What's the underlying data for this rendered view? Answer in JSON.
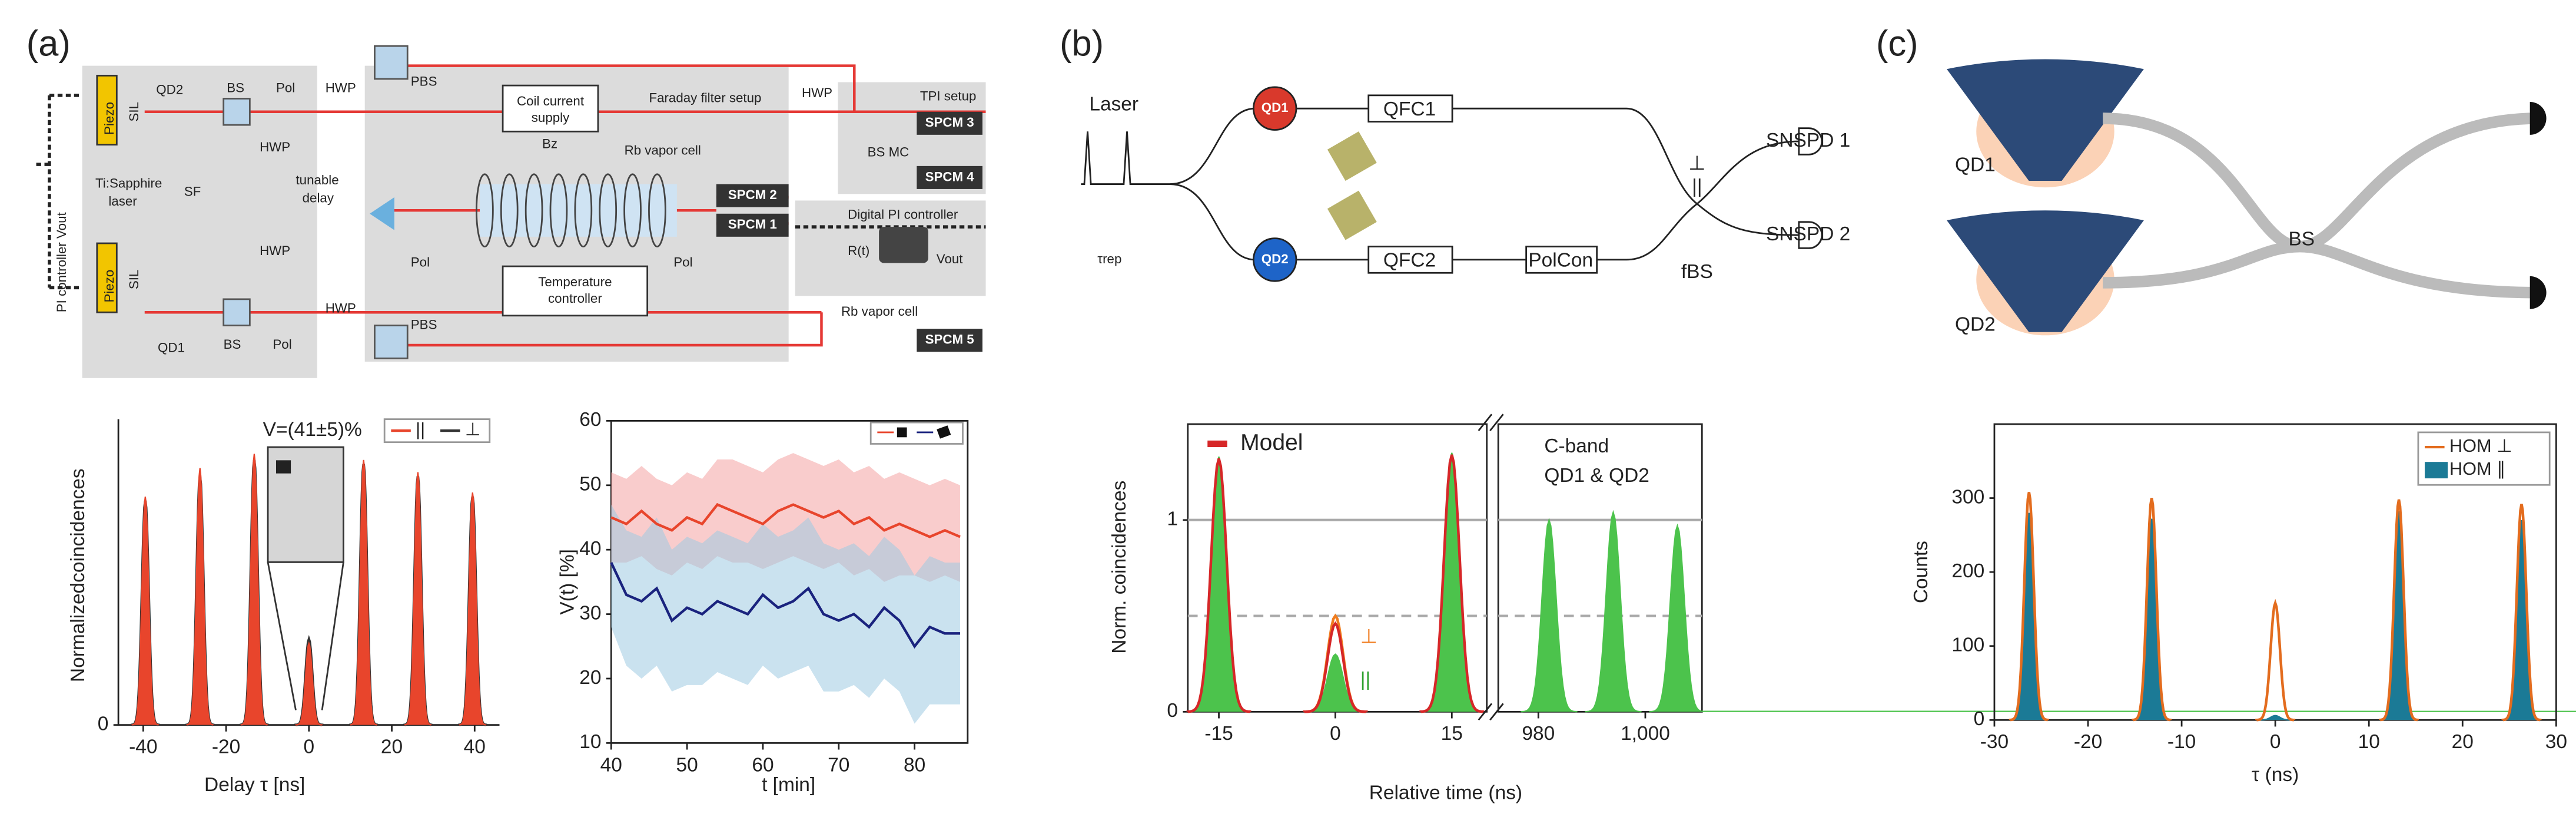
{
  "panels": [
    "(a)",
    "(b)",
    "(c)"
  ],
  "diagram_a": {
    "labels": [
      "QD2",
      "BS",
      "Pol",
      "HWP",
      "tunable",
      "delay",
      "Ti:Sapphire",
      "laser",
      "SF",
      "HWP",
      "BS",
      "Pol",
      "QD1",
      "HWP",
      "PBS",
      "PBS",
      "HWP",
      "Faraday filter setup",
      "Coil current",
      "supply",
      "Rb vapor cell",
      "Temperature",
      "controller",
      "Pol",
      "Pol",
      "SPCM 2",
      "SPCM 1",
      "TPI setup",
      "SPCM 3",
      "SPCM 4",
      "HWP",
      "BS MC",
      "Digital PI controller",
      "R(t)",
      "Vout",
      "Rb vapor cell",
      "SPCM 5",
      "PI controller Vout",
      "Piezo",
      "Piezo",
      "SIL",
      "SIL",
      "Bz"
    ]
  },
  "diagram_b": {
    "labels": [
      "Laser",
      "τrep",
      "QD1",
      "QD2",
      "QFC1",
      "QFC2",
      "PolCon",
      "⊥",
      "||",
      "fBS",
      "SNSPD 1",
      "SNSPD 2"
    ]
  },
  "diagram_c": {
    "labels": [
      "QD1",
      "QD2",
      "BS"
    ]
  },
  "chart_data": [
    {
      "type": "peaks",
      "xlim": [
        -46,
        46
      ],
      "xticks": [
        -40,
        -20,
        0,
        20,
        40
      ],
      "ylim": [
        0,
        1.5
      ],
      "yticks": [
        0
      ],
      "xlabel": "Delay τ [ns]",
      "ylabel": "Normalizedcoincidences",
      "annotation": "V=(41±5)%",
      "series": [
        {
          "name": "⊥",
          "color": "#333333",
          "fill": false,
          "x": [
            -39.5,
            -26.3,
            -13.2,
            0,
            13.2,
            26.3,
            39.5
          ],
          "values": [
            1.1,
            1.22,
            1.3,
            0.42,
            1.28,
            1.22,
            1.12
          ]
        },
        {
          "name": "||",
          "color": "#e8452c",
          "fill": true,
          "x": [
            -39.5,
            -26.3,
            -13.2,
            0,
            13.2,
            26.3,
            39.5
          ],
          "values": [
            1.12,
            1.26,
            1.33,
            0.4,
            1.3,
            1.24,
            1.14
          ]
        }
      ]
    },
    {
      "type": "line",
      "xlim": [
        40,
        87
      ],
      "xticks": [
        40,
        50,
        60,
        70,
        80
      ],
      "ylim": [
        10,
        60
      ],
      "yticks": [
        10,
        20,
        30,
        40,
        50,
        60
      ],
      "xlabel": "t [min]",
      "ylabel": "V(t) [%]",
      "x": [
        40,
        42,
        44,
        46,
        48,
        50,
        52,
        54,
        56,
        58,
        60,
        62,
        64,
        66,
        68,
        70,
        72,
        74,
        76,
        78,
        80,
        82,
        84,
        86
      ],
      "series": [
        {
          "color": "#e8452c",
          "band_color": "#f4a3a3",
          "values": [
            45,
            44,
            46,
            44,
            43,
            45,
            44,
            47,
            46,
            45,
            44,
            46,
            47,
            46,
            45,
            46,
            44,
            45,
            43,
            44,
            43,
            42,
            43,
            42
          ],
          "band_lower": [
            38,
            38,
            39,
            37,
            36,
            38,
            37,
            39,
            38,
            38,
            37,
            38,
            39,
            38,
            37,
            38,
            36,
            37,
            35,
            36,
            36,
            35,
            36,
            35
          ],
          "band_upper": [
            52,
            51,
            53,
            51,
            50,
            52,
            51,
            54,
            54,
            53,
            52,
            54,
            55,
            54,
            53,
            54,
            52,
            53,
            51,
            52,
            51,
            50,
            51,
            50
          ]
        },
        {
          "color": "#1a237e",
          "band_color": "#9ecae1",
          "values": [
            38,
            33,
            32,
            34,
            29,
            31,
            30,
            32,
            31,
            30,
            33,
            31,
            32,
            34,
            30,
            29,
            30,
            28,
            31,
            29,
            25,
            28,
            27,
            27
          ],
          "band_lower": [
            28,
            22,
            20,
            22,
            18,
            19,
            19,
            21,
            20,
            19,
            22,
            20,
            21,
            22,
            18,
            18,
            19,
            17,
            20,
            18,
            13,
            16,
            16,
            16
          ],
          "band_upper": [
            47,
            43,
            42,
            45,
            40,
            42,
            41,
            43,
            42,
            41,
            44,
            42,
            43,
            45,
            41,
            40,
            41,
            39,
            42,
            40,
            36,
            39,
            38,
            38
          ]
        }
      ]
    },
    {
      "type": "peaks",
      "ylim": [
        0,
        1.5
      ],
      "yticks": [
        0,
        1
      ],
      "grid": true,
      "dashed_lines": [
        0.5
      ],
      "segments": [
        {
          "xlim": [
            -19,
            19.5
          ],
          "xticks": [
            -15,
            0,
            15
          ]
        },
        {
          "xlim": [
            972.5,
            1010.6
          ],
          "xticks": [
            980,
            {
              "value": 1000,
              "label": "1,000"
            }
          ]
        }
      ],
      "xlabel": "Relative time (ns)",
      "ylabel": "Norm. coincidences",
      "annotations": [
        "C-band",
        "QD1 & QD2",
        "⊥",
        "||"
      ],
      "series": [
        {
          "color": "#4cc34c",
          "fill": true,
          "x": [
            -15,
            0,
            15,
            982,
            994,
            1006
          ],
          "values": [
            1.33,
            0.3,
            1.35,
            1.0,
            1.04,
            0.97
          ]
        },
        {
          "color": "#f07c1e",
          "fill": false,
          "x": [
            0
          ],
          "values": [
            0.5
          ]
        },
        {
          "name": "Model",
          "color": "#d62728",
          "fill": false,
          "x": [
            -15,
            0,
            15
          ],
          "values": [
            1.32,
            0.46,
            1.34
          ]
        }
      ]
    },
    {
      "type": "peaks",
      "xlim": [
        -30,
        30
      ],
      "xticks": [
        -30,
        -20,
        -10,
        0,
        10,
        20,
        30
      ],
      "ylim": [
        0,
        400
      ],
      "yticks": [
        0,
        100,
        200,
        300
      ],
      "xlabel": "τ (ns)",
      "ylabel": "Counts",
      "series": [
        {
          "name": "HOM ∥",
          "color": "#1b7a96",
          "fill": true,
          "x": [
            -26.3,
            -13.2,
            0,
            13.2,
            26.3
          ],
          "values": [
            280,
            272,
            6,
            282,
            270
          ]
        },
        {
          "name": "HOM ⊥",
          "color": "#e36c1e",
          "fill": false,
          "x": [
            -26.3,
            -13.2,
            0,
            13.2,
            26.3
          ],
          "values": [
            308,
            300,
            158,
            298,
            292
          ]
        }
      ]
    }
  ]
}
